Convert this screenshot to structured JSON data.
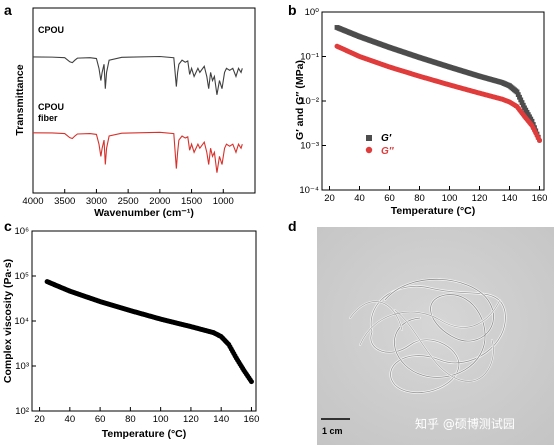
{
  "panel_labels": {
    "a": "a",
    "b": "b",
    "c": "c",
    "d": "d"
  },
  "chart_data": [
    {
      "panel": "a",
      "type": "line",
      "xlabel": "Wavenumber (cm⁻¹)",
      "ylabel": "Transmittance",
      "xlim": [
        4000,
        500
      ],
      "x_reversed": true,
      "xticks": [
        4000,
        3500,
        3000,
        2500,
        2000,
        1500,
        1000
      ],
      "series": [
        {
          "name": "CPOU",
          "color": "#404040",
          "offset": 0.74,
          "points": [
            [
              4000,
              0.98
            ],
            [
              3700,
              0.975
            ],
            [
              3500,
              0.96
            ],
            [
              3420,
              0.86
            ],
            [
              3380,
              0.84
            ],
            [
              3340,
              0.9
            ],
            [
              3300,
              0.95
            ],
            [
              3100,
              0.96
            ],
            [
              3000,
              0.94
            ],
            [
              2960,
              0.7
            ],
            [
              2930,
              0.4
            ],
            [
              2910,
              0.6
            ],
            [
              2880,
              0.8
            ],
            [
              2860,
              0.2
            ],
            [
              2840,
              0.6
            ],
            [
              2800,
              0.9
            ],
            [
              2600,
              0.97
            ],
            [
              2000,
              0.99
            ],
            [
              1780,
              0.96
            ],
            [
              1740,
              0.25
            ],
            [
              1720,
              0.6
            ],
            [
              1700,
              0.8
            ],
            [
              1650,
              0.9
            ],
            [
              1600,
              0.85
            ],
            [
              1560,
              0.88
            ],
            [
              1530,
              0.55
            ],
            [
              1500,
              0.7
            ],
            [
              1460,
              0.5
            ],
            [
              1430,
              0.6
            ],
            [
              1400,
              0.7
            ],
            [
              1370,
              0.6
            ],
            [
              1300,
              0.75
            ],
            [
              1260,
              0.5
            ],
            [
              1230,
              0.2
            ],
            [
              1200,
              0.6
            ],
            [
              1170,
              0.4
            ],
            [
              1140,
              0.5
            ],
            [
              1100,
              0.05
            ],
            [
              1060,
              0.4
            ],
            [
              1020,
              0.2
            ],
            [
              980,
              0.6
            ],
            [
              950,
              0.7
            ],
            [
              900,
              0.65
            ],
            [
              850,
              0.7
            ],
            [
              800,
              0.5
            ],
            [
              760,
              0.7
            ],
            [
              720,
              0.6
            ],
            [
              700,
              0.7
            ]
          ]
        },
        {
          "name": "CPOU fiber",
          "color": "#d8312b",
          "offset": 0.33,
          "points": [
            [
              4000,
              0.98
            ],
            [
              3700,
              0.975
            ],
            [
              3500,
              0.96
            ],
            [
              3420,
              0.86
            ],
            [
              3380,
              0.84
            ],
            [
              3340,
              0.9
            ],
            [
              3300,
              0.95
            ],
            [
              3100,
              0.96
            ],
            [
              3000,
              0.94
            ],
            [
              2960,
              0.7
            ],
            [
              2930,
              0.4
            ],
            [
              2910,
              0.6
            ],
            [
              2880,
              0.8
            ],
            [
              2860,
              0.2
            ],
            [
              2840,
              0.6
            ],
            [
              2800,
              0.9
            ],
            [
              2600,
              0.97
            ],
            [
              2000,
              0.99
            ],
            [
              1780,
              0.96
            ],
            [
              1740,
              0.1
            ],
            [
              1720,
              0.5
            ],
            [
              1700,
              0.8
            ],
            [
              1650,
              0.9
            ],
            [
              1600,
              0.85
            ],
            [
              1560,
              0.88
            ],
            [
              1530,
              0.55
            ],
            [
              1500,
              0.7
            ],
            [
              1460,
              0.5
            ],
            [
              1430,
              0.6
            ],
            [
              1400,
              0.7
            ],
            [
              1370,
              0.6
            ],
            [
              1300,
              0.75
            ],
            [
              1260,
              0.5
            ],
            [
              1230,
              0.2
            ],
            [
              1200,
              0.6
            ],
            [
              1170,
              0.4
            ],
            [
              1140,
              0.5
            ],
            [
              1100,
              0.0
            ],
            [
              1060,
              0.4
            ],
            [
              1020,
              0.2
            ],
            [
              980,
              0.6
            ],
            [
              950,
              0.7
            ],
            [
              900,
              0.65
            ],
            [
              850,
              0.7
            ],
            [
              800,
              0.5
            ],
            [
              760,
              0.7
            ],
            [
              720,
              0.6
            ],
            [
              700,
              0.7
            ]
          ]
        }
      ],
      "annotations": [
        {
          "text": "CPOU"
        },
        {
          "text": "CPOU"
        },
        {
          "text": "fiber"
        }
      ]
    },
    {
      "panel": "b",
      "type": "scatter",
      "xlabel": "Temperature (°C)",
      "ylabel": "G′ and G″ (MPa)",
      "y_scale": "log",
      "xlim": [
        15,
        163
      ],
      "ylim": [
        0.0001,
        1
      ],
      "xticks": [
        20,
        40,
        60,
        80,
        100,
        120,
        140,
        160
      ],
      "ytick_labels": [
        "10⁻⁴",
        "10⁻³",
        "10⁻²",
        "10⁻¹",
        "10⁰"
      ],
      "legend_position": "lower-left",
      "series": [
        {
          "name": "G′",
          "color": "#4d4d4d",
          "x": [
            25,
            40,
            60,
            80,
            100,
            120,
            135,
            140,
            145,
            150,
            155,
            160
          ],
          "y": [
            0.45,
            0.28,
            0.16,
            0.095,
            0.058,
            0.036,
            0.026,
            0.022,
            0.016,
            0.007,
            0.0035,
            0.0013
          ]
        },
        {
          "name": "G″",
          "color": "#e03c3c",
          "x": [
            25,
            40,
            60,
            80,
            100,
            120,
            135,
            140,
            145,
            150,
            155,
            160
          ],
          "y": [
            0.17,
            0.1,
            0.058,
            0.036,
            0.023,
            0.015,
            0.011,
            0.0095,
            0.0075,
            0.0045,
            0.0028,
            0.0013
          ]
        }
      ]
    },
    {
      "panel": "c",
      "type": "scatter",
      "xlabel": "Temperature (°C)",
      "ylabel": "Complex viscosity (Pa·s)",
      "y_scale": "log",
      "xlim": [
        15,
        163
      ],
      "ylim": [
        100,
        1000000
      ],
      "xticks": [
        20,
        40,
        60,
        80,
        100,
        120,
        140,
        160
      ],
      "ytick_labels": [
        "10²",
        "10³",
        "10⁴",
        "10⁵",
        "10⁶"
      ],
      "series": [
        {
          "name": "",
          "color": "#000000",
          "x": [
            25,
            40,
            60,
            80,
            100,
            120,
            135,
            140,
            145,
            150,
            155,
            160
          ],
          "y": [
            75000,
            46000,
            27000,
            17000,
            11000,
            7500,
            5500,
            4500,
            3000,
            1500,
            800,
            450
          ]
        }
      ]
    }
  ],
  "photo": {
    "panel": "d",
    "scale_bar_label": "1 cm",
    "watermark": "知乎 @硕博测试园"
  }
}
